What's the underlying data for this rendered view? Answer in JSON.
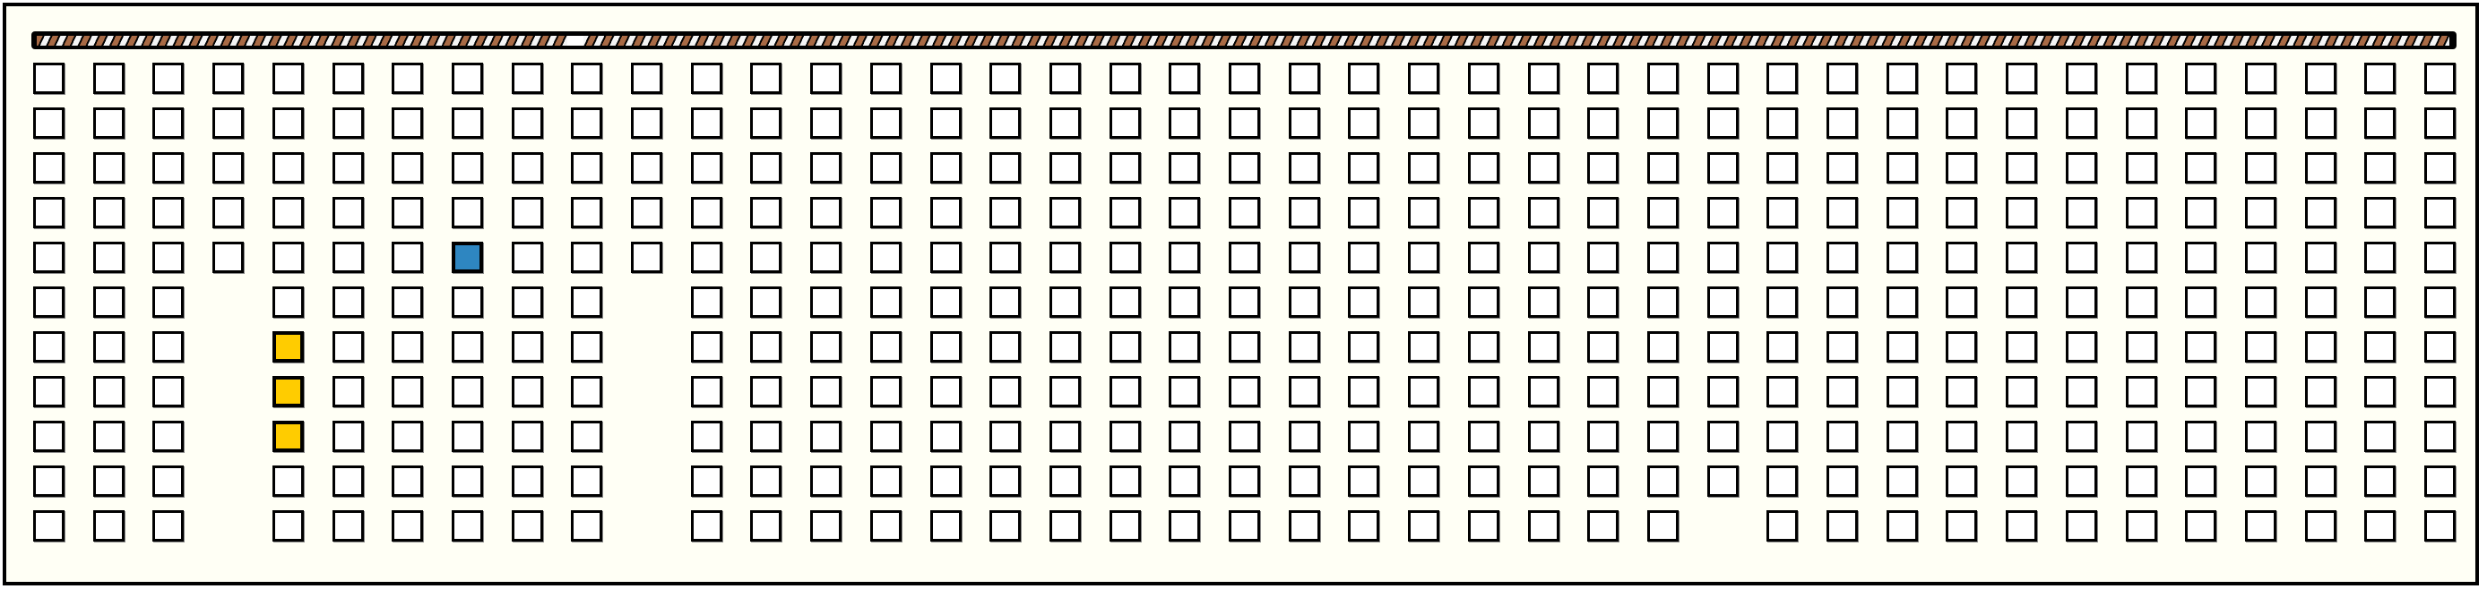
{
  "colors": {
    "background": "#fffff5",
    "cell_fill": "#ffffff",
    "cell_border": "#000000",
    "stripe_brown": "#a86a45",
    "stripe_white": "#f4f4f4"
  },
  "progress_bar": {
    "marker_position_fraction": 0.22
  },
  "grid": {
    "rows": 11,
    "cols": 41,
    "missing": [
      [
        5,
        3
      ],
      [
        6,
        3
      ],
      [
        7,
        3
      ],
      [
        8,
        3
      ],
      [
        9,
        3
      ],
      [
        10,
        3
      ],
      [
        5,
        10
      ],
      [
        6,
        10
      ],
      [
        7,
        10
      ],
      [
        8,
        10
      ],
      [
        9,
        10
      ],
      [
        10,
        10
      ],
      [
        10,
        28
      ]
    ],
    "highlighted": [
      {
        "row": 4,
        "col": 7,
        "color": "#2e86c1"
      },
      {
        "row": 6,
        "col": 4,
        "color": "#ffcc00"
      },
      {
        "row": 7,
        "col": 4,
        "color": "#ffcc00"
      },
      {
        "row": 8,
        "col": 4,
        "color": "#ffcc00"
      }
    ]
  }
}
